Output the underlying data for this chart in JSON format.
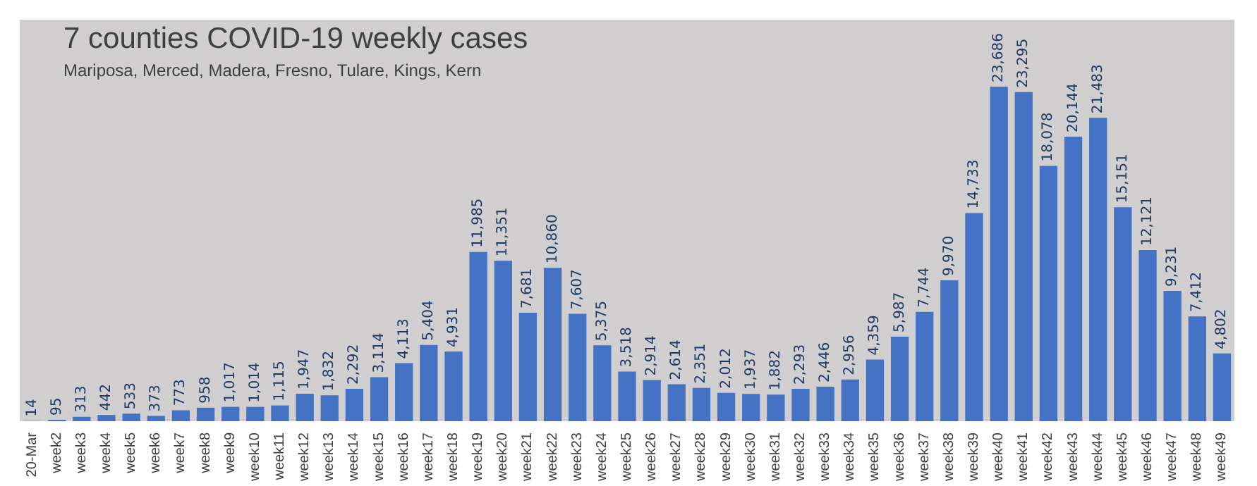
{
  "chart_data": {
    "type": "bar",
    "title": "7 counties COVID-19 weekly cases",
    "subtitle": "Mariposa, Merced, Madera, Fresno, Tulare, Kings, Kern",
    "categories": [
      "20-Mar",
      "week2",
      "week3",
      "week4",
      "week5",
      "week6",
      "week7",
      "week8",
      "week9",
      "week10",
      "week11",
      "week12",
      "week13",
      "week14",
      "week15",
      "week16",
      "week17",
      "week18",
      "week19",
      "week20",
      "week21",
      "week22",
      "week23",
      "week24",
      "week25",
      "week26",
      "week27",
      "week28",
      "week29",
      "week30",
      "week31",
      "week32",
      "week33",
      "week34",
      "week35",
      "week36",
      "week37",
      "week38",
      "week39",
      "week40",
      "week41",
      "week42",
      "week43",
      "week44",
      "week45",
      "week46",
      "week47",
      "week48",
      "week49"
    ],
    "values": [
      14,
      95,
      313,
      442,
      533,
      373,
      773,
      958,
      1017,
      1014,
      1115,
      1947,
      1832,
      2292,
      3114,
      4113,
      5404,
      4931,
      11985,
      11351,
      7681,
      10860,
      7607,
      5375,
      3518,
      2914,
      2614,
      2351,
      2012,
      1937,
      1882,
      2293,
      2446,
      2956,
      4359,
      5987,
      7744,
      9970,
      14733,
      23686,
      23295,
      18078,
      20144,
      21483,
      15151,
      12121,
      9231,
      7412,
      4802
    ],
    "value_labels": [
      "14",
      "95",
      "313",
      "442",
      "533",
      "373",
      "773",
      "958",
      "1,017",
      "1,014",
      "1,115",
      "1,947",
      "1,832",
      "2,292",
      "3,114",
      "4,113",
      "5,404",
      "4,931",
      "11,985",
      "11,351",
      "7,681",
      "10,860",
      "7,607",
      "5,375",
      "3,518",
      "2,914",
      "2,614",
      "2,351",
      "2,012",
      "1,937",
      "1,882",
      "2,293",
      "2,446",
      "2,956",
      "4,359",
      "5,987",
      "7,744",
      "9,970",
      "14,733",
      "23,686",
      "23,295",
      "18,078",
      "20,144",
      "21,483",
      "15,151",
      "12,121",
      "9,231",
      "7,412",
      "4,802"
    ],
    "color": "#4472c4"
  }
}
